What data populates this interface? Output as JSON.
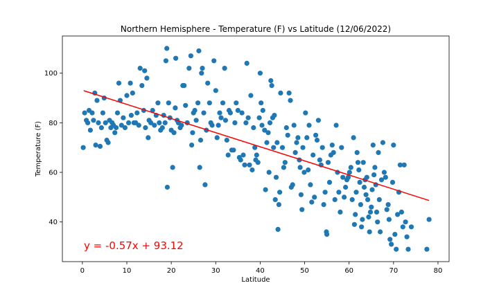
{
  "chart_data": {
    "type": "scatter",
    "title": "Northern Hemisphere - Temperature (F) vs Latitude (12/06/2022)",
    "xlabel": "Latitude",
    "ylabel": "Temperature (F)",
    "xlim": [
      -4.5,
      82.5
    ],
    "ylim": [
      24,
      115
    ],
    "xticks": [
      0,
      10,
      20,
      30,
      40,
      50,
      60,
      70,
      80
    ],
    "yticks": [
      40,
      60,
      80,
      100
    ],
    "grid": false,
    "point_color": "#1f77b4",
    "regression": {
      "slope": -0.57,
      "intercept": 93.12,
      "x_range": [
        0.3,
        78
      ],
      "color": "#ff0000",
      "equation": "y = -0.57x + 93.12",
      "equation_color": "#ff0000"
    },
    "series": [
      {
        "points": [
          [
            0.2,
            70
          ],
          [
            0.5,
            84
          ],
          [
            0.9,
            81
          ],
          [
            1.2,
            80
          ],
          [
            1.5,
            85
          ],
          [
            1.8,
            77
          ],
          [
            2.2,
            84
          ],
          [
            2.5,
            81
          ],
          [
            2.8,
            92
          ],
          [
            3,
            71
          ],
          [
            3.3,
            89
          ],
          [
            3.6,
            80
          ],
          [
            4,
            70.5
          ],
          [
            4.3,
            78
          ],
          [
            4.6,
            84
          ],
          [
            4.9,
            90
          ],
          [
            5.2,
            80
          ],
          [
            5.5,
            73
          ],
          [
            5.8,
            72
          ],
          [
            6.1,
            81
          ],
          [
            6.4,
            78
          ],
          [
            6.7,
            80
          ],
          [
            7,
            79
          ],
          [
            7.3,
            76
          ],
          [
            7.6,
            78
          ],
          [
            7.9,
            84
          ],
          [
            8.2,
            96
          ],
          [
            8.5,
            89
          ],
          [
            8.8,
            79
          ],
          [
            9.2,
            82
          ],
          [
            9.6,
            78
          ],
          [
            10,
            91
          ],
          [
            10.4,
            80
          ],
          [
            10.8,
            96
          ],
          [
            11,
            83
          ],
          [
            11.3,
            92
          ],
          [
            11.6,
            80
          ],
          [
            12,
            80
          ],
          [
            12.3,
            84
          ],
          [
            12.7,
            79
          ],
          [
            13,
            102
          ],
          [
            13.4,
            95
          ],
          [
            13.8,
            85
          ],
          [
            14,
            101
          ],
          [
            14.2,
            78
          ],
          [
            14.5,
            98
          ],
          [
            14.8,
            74
          ],
          [
            15,
            81
          ],
          [
            15.4,
            80
          ],
          [
            15.8,
            85
          ],
          [
            16.2,
            79
          ],
          [
            16.6,
            83
          ],
          [
            17,
            88
          ],
          [
            17.3,
            80
          ],
          [
            17.6,
            77
          ],
          [
            18,
            78
          ],
          [
            18.3,
            83
          ],
          [
            18.6,
            80
          ],
          [
            18.8,
            105
          ],
          [
            19,
            110
          ],
          [
            19.1,
            54
          ],
          [
            19.4,
            88
          ],
          [
            19.7,
            82
          ],
          [
            20,
            77
          ],
          [
            20.3,
            62
          ],
          [
            20.6,
            76
          ],
          [
            20.9,
            86
          ],
          [
            21,
            106
          ],
          [
            21.3,
            81
          ],
          [
            21.6,
            80
          ],
          [
            22,
            78
          ],
          [
            22.3,
            79
          ],
          [
            22.6,
            95
          ],
          [
            22.9,
            95
          ],
          [
            23.2,
            87
          ],
          [
            23.6,
            80
          ],
          [
            24,
            102
          ],
          [
            24.4,
            107
          ],
          [
            24.6,
            71
          ],
          [
            24.8,
            76
          ],
          [
            25,
            84
          ],
          [
            25.3,
            85
          ],
          [
            25.6,
            81
          ],
          [
            26,
            88
          ],
          [
            26.2,
            109
          ],
          [
            26.4,
            62
          ],
          [
            26.6,
            73
          ],
          [
            26.8,
            100
          ],
          [
            27,
            102
          ],
          [
            27.3,
            84
          ],
          [
            27.6,
            55
          ],
          [
            27.9,
            77
          ],
          [
            28.2,
            96
          ],
          [
            28.6,
            88
          ],
          [
            28.9,
            80
          ],
          [
            29.2,
            79
          ],
          [
            29.6,
            105
          ],
          [
            30,
            93
          ],
          [
            30.3,
            74
          ],
          [
            30.6,
            79
          ],
          [
            30.9,
            84
          ],
          [
            31.2,
            82
          ],
          [
            31.6,
            88
          ],
          [
            32,
            102
          ],
          [
            32.2,
            81
          ],
          [
            32.5,
            73
          ],
          [
            32.8,
            67
          ],
          [
            33,
            85
          ],
          [
            33.3,
            84
          ],
          [
            33.6,
            69
          ],
          [
            34,
            69
          ],
          [
            34.3,
            80
          ],
          [
            34.6,
            88
          ],
          [
            35,
            85
          ],
          [
            35.3,
            66
          ],
          [
            35.6,
            65
          ],
          [
            35.9,
            84
          ],
          [
            36.2,
            67
          ],
          [
            36.5,
            63
          ],
          [
            36.8,
            80
          ],
          [
            37,
            104
          ],
          [
            37.3,
            82
          ],
          [
            37.6,
            63
          ],
          [
            37.9,
            91
          ],
          [
            38.2,
            61
          ],
          [
            38.5,
            78
          ],
          [
            38.8,
            70
          ],
          [
            39,
            65
          ],
          [
            39.2,
            67
          ],
          [
            39.5,
            64
          ],
          [
            39.8,
            82
          ],
          [
            40,
            100
          ],
          [
            40.2,
            88
          ],
          [
            40.4,
            79
          ],
          [
            40.6,
            85
          ],
          [
            41,
            77
          ],
          [
            41.2,
            53
          ],
          [
            41.5,
            72
          ],
          [
            41.8,
            76
          ],
          [
            42,
            60
          ],
          [
            42.2,
            80
          ],
          [
            42.4,
            97
          ],
          [
            42.6,
            95
          ],
          [
            42.8,
            82
          ],
          [
            43,
            70
          ],
          [
            43.2,
            83
          ],
          [
            43.4,
            49
          ],
          [
            43.6,
            58
          ],
          [
            43.8,
            72
          ],
          [
            44,
            37
          ],
          [
            44.2,
            47
          ],
          [
            44.4,
            52
          ],
          [
            44.6,
            92
          ],
          [
            45,
            70
          ],
          [
            45.3,
            62
          ],
          [
            45.6,
            64
          ],
          [
            45.9,
            78
          ],
          [
            46.2,
            75
          ],
          [
            46.5,
            92
          ],
          [
            46.8,
            89
          ],
          [
            47,
            54
          ],
          [
            47.3,
            55
          ],
          [
            47.6,
            79
          ],
          [
            47.9,
            68
          ],
          [
            48.2,
            72
          ],
          [
            48.5,
            74
          ],
          [
            48.8,
            65
          ],
          [
            49,
            62
          ],
          [
            49.2,
            51
          ],
          [
            49.4,
            45
          ],
          [
            49.6,
            70
          ],
          [
            49.9,
            60
          ],
          [
            50.2,
            84
          ],
          [
            50.5,
            74
          ],
          [
            50.8,
            61
          ],
          [
            51,
            79
          ],
          [
            51.3,
            55
          ],
          [
            51.6,
            48
          ],
          [
            51.9,
            67
          ],
          [
            52.2,
            50
          ],
          [
            52.5,
            75
          ],
          [
            52.8,
            73
          ],
          [
            53.1,
            81
          ],
          [
            53.4,
            65
          ],
          [
            53.7,
            63
          ],
          [
            54,
            70
          ],
          [
            54.3,
            47
          ],
          [
            54.6,
            52
          ],
          [
            54.9,
            36
          ],
          [
            55,
            35
          ],
          [
            55.3,
            64
          ],
          [
            55.6,
            56
          ],
          [
            55.9,
            67
          ],
          [
            56.2,
            71
          ],
          [
            56.5,
            68
          ],
          [
            56.8,
            49
          ],
          [
            57.1,
            79
          ],
          [
            57.4,
            60
          ],
          [
            57.7,
            52
          ],
          [
            58,
            44
          ],
          [
            58.3,
            70
          ],
          [
            58.6,
            58
          ],
          [
            58.9,
            50
          ],
          [
            59.2,
            54
          ],
          [
            59.5,
            57
          ],
          [
            59.8,
            58
          ],
          [
            60.1,
            60
          ],
          [
            60.4,
            62
          ],
          [
            60.7,
            49
          ],
          [
            61,
            74
          ],
          [
            61.2,
            39
          ],
          [
            61.4,
            43
          ],
          [
            61.6,
            52
          ],
          [
            61.8,
            68
          ],
          [
            62,
            64
          ],
          [
            62.2,
            61
          ],
          [
            62.4,
            56
          ],
          [
            62.6,
            47
          ],
          [
            62.8,
            38
          ],
          [
            63,
            41
          ],
          [
            63.2,
            64
          ],
          [
            63.4,
            54
          ],
          [
            63.6,
            57
          ],
          [
            63.8,
            51
          ],
          [
            64,
            58
          ],
          [
            64.2,
            49
          ],
          [
            64.4,
            42
          ],
          [
            64.6,
            36
          ],
          [
            64.8,
            44
          ],
          [
            65,
            46
          ],
          [
            65.2,
            53
          ],
          [
            65.4,
            71
          ],
          [
            65.6,
            59
          ],
          [
            65.8,
            62
          ],
          [
            66,
            55
          ],
          [
            66.2,
            44
          ],
          [
            66.4,
            40
          ],
          [
            66.6,
            68
          ],
          [
            66.8,
            49
          ],
          [
            67,
            36
          ],
          [
            67.3,
            57
          ],
          [
            67.6,
            72
          ],
          [
            67.9,
            60
          ],
          [
            68.2,
            58
          ],
          [
            68.5,
            45
          ],
          [
            68.8,
            47
          ],
          [
            69,
            41
          ],
          [
            69.2,
            33
          ],
          [
            69.5,
            31
          ],
          [
            69.8,
            56
          ],
          [
            70,
            71
          ],
          [
            70.3,
            35
          ],
          [
            70.6,
            29
          ],
          [
            70.9,
            43
          ],
          [
            71.2,
            52
          ],
          [
            71.5,
            63
          ],
          [
            71.8,
            44
          ],
          [
            72.1,
            38
          ],
          [
            72.4,
            63
          ],
          [
            72.7,
            40
          ],
          [
            73,
            34
          ],
          [
            73.3,
            29
          ],
          [
            74,
            38
          ],
          [
            77.5,
            29
          ],
          [
            78,
            41
          ]
        ]
      }
    ]
  }
}
